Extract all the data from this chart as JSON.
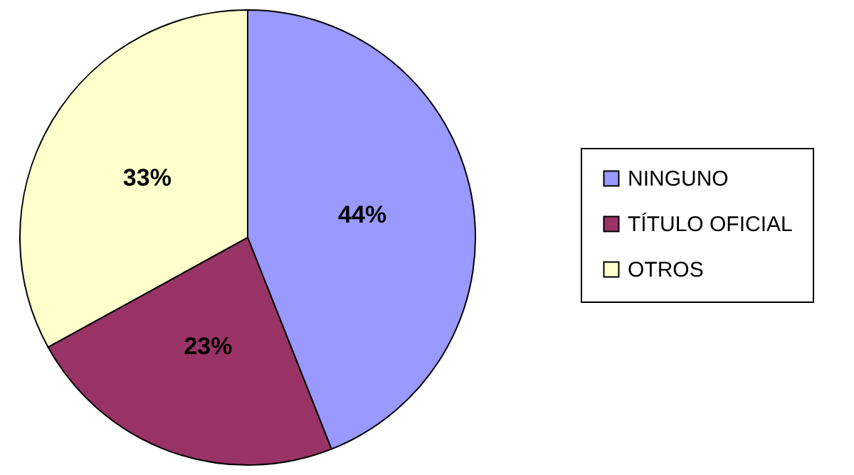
{
  "chart_data": {
    "type": "pie",
    "categories": [
      "NINGUNO",
      "TÍTULO OFICIAL",
      "OTROS"
    ],
    "values": [
      44,
      23,
      33
    ],
    "colors": [
      "#9999ff",
      "#993366",
      "#ffffcc"
    ],
    "value_labels": [
      "44%",
      "23%",
      "33%"
    ],
    "legend": "right"
  }
}
